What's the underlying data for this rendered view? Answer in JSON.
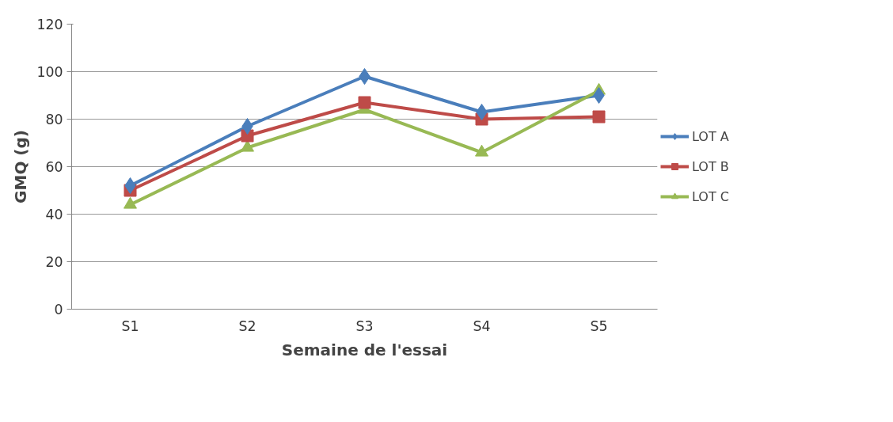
{
  "chart_data": {
    "type": "line",
    "xlabel": "Semaine de l'essai",
    "ylabel": "GMQ (g)",
    "categories": [
      "S1",
      "S2",
      "S3",
      "S4",
      "S5"
    ],
    "series": [
      {
        "name": "LOT A",
        "color": "#4a7ebb",
        "marker": "diamond",
        "values": [
          52,
          77,
          98,
          83,
          90
        ]
      },
      {
        "name": "LOT B",
        "color": "#be4b48",
        "marker": "square",
        "values": [
          50,
          73,
          87,
          80,
          81
        ]
      },
      {
        "name": "LOT C",
        "color": "#98b954",
        "marker": "triangle",
        "values": [
          44,
          68,
          84,
          66,
          92
        ]
      }
    ],
    "ylim": [
      0,
      120
    ],
    "yticks": [
      0,
      20,
      40,
      60,
      80,
      100,
      120
    ],
    "grid": "y",
    "legend": "right"
  }
}
